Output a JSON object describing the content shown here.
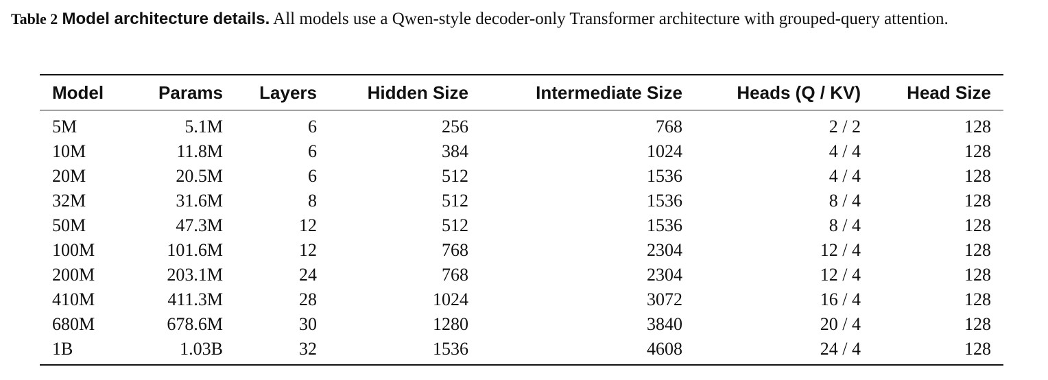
{
  "caption": {
    "label": "Table 2",
    "title": "Model architecture details.",
    "text": "All models use a Qwen-style decoder-only Transformer architecture with grouped-query attention."
  },
  "table": {
    "header": [
      "Model",
      "Params",
      "Layers",
      "Hidden Size",
      "Intermediate Size",
      "Heads (Q / KV)",
      "Head Size"
    ],
    "rows": [
      [
        "5M",
        "5.1M",
        "6",
        "256",
        "768",
        "2 / 2",
        "128"
      ],
      [
        "10M",
        "11.8M",
        "6",
        "384",
        "1024",
        "4 / 4",
        "128"
      ],
      [
        "20M",
        "20.5M",
        "6",
        "512",
        "1536",
        "4 / 4",
        "128"
      ],
      [
        "32M",
        "31.6M",
        "8",
        "512",
        "1536",
        "8 / 4",
        "128"
      ],
      [
        "50M",
        "47.3M",
        "12",
        "512",
        "1536",
        "8 / 4",
        "128"
      ],
      [
        "100M",
        "101.6M",
        "12",
        "768",
        "2304",
        "12 / 4",
        "128"
      ],
      [
        "200M",
        "203.1M",
        "24",
        "768",
        "2304",
        "12 / 4",
        "128"
      ],
      [
        "410M",
        "411.3M",
        "28",
        "1024",
        "3072",
        "16 / 4",
        "128"
      ],
      [
        "680M",
        "678.6M",
        "30",
        "1280",
        "3840",
        "20 / 4",
        "128"
      ],
      [
        "1B",
        "1.03B",
        "32",
        "1536",
        "4608",
        "24 / 4",
        "128"
      ]
    ]
  }
}
